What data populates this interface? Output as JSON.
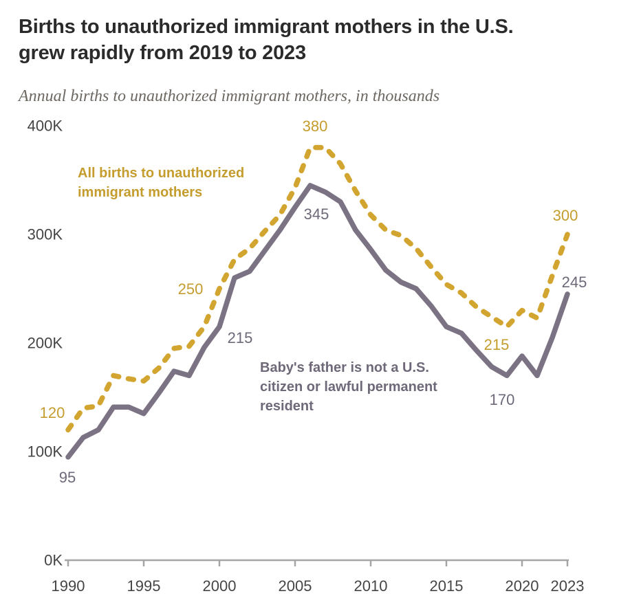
{
  "colors": {
    "gold_line": "#d1a52f",
    "gold_text": "#c49d2e",
    "gray_line": "#7b7383",
    "gray_text": "#6e6878",
    "axis_line": "#a6a6a6",
    "tick_text": "#454547",
    "title_text": "#2b2b2b",
    "subtitle_text": "#6d6862"
  },
  "chart_data": {
    "type": "line",
    "title": "Births to unauthorized immigrant mothers in the U.S.\ngrew rapidly from 2019 to 2023",
    "subtitle": "Annual births to unauthorized immigrant mothers, in thousands",
    "unit": "thousands of births",
    "grid": false,
    "legend_position": "direct-labels-on-chart",
    "xlim": [
      1990,
      2023
    ],
    "ylim": [
      0,
      400
    ],
    "x": [
      1990,
      1991,
      1992,
      1993,
      1994,
      1995,
      1996,
      1997,
      1998,
      1999,
      2000,
      2001,
      2002,
      2003,
      2004,
      2005,
      2006,
      2007,
      2008,
      2009,
      2010,
      2011,
      2012,
      2013,
      2014,
      2015,
      2016,
      2017,
      2018,
      2019,
      2020,
      2021,
      2022,
      2023
    ],
    "series": [
      {
        "id": "father",
        "name": "Baby's father is not a U.S. citizen or lawful permanent resident",
        "label": "Baby's father is not a U.S.\ncitizen or lawful permanent\nresident",
        "style": "solid",
        "color_key": "gray_line",
        "values": [
          95,
          113,
          120,
          141,
          141,
          135,
          154,
          174,
          170,
          196,
          215,
          260,
          266,
          285,
          304,
          325,
          345,
          339,
          330,
          304,
          286,
          267,
          256,
          250,
          234,
          215,
          209,
          193,
          178,
          170,
          188,
          170,
          205,
          245
        ]
      },
      {
        "id": "all",
        "name": "All births to unauthorized immigrant mothers",
        "label": "All births to unauthorized\nimmigrant mothers",
        "style": "dashed",
        "color_key": "gold_line",
        "values": [
          120,
          140,
          142,
          170,
          167,
          165,
          177,
          195,
          197,
          215,
          250,
          277,
          287,
          303,
          318,
          343,
          380,
          380,
          365,
          340,
          318,
          304,
          299,
          287,
          270,
          254,
          246,
          233,
          224,
          215,
          230,
          223,
          262,
          300
        ]
      }
    ],
    "y_ticks": [
      {
        "value": 400,
        "label": "400K"
      },
      {
        "value": 300,
        "label": "300K"
      },
      {
        "value": 200,
        "label": "200K"
      },
      {
        "value": 100,
        "label": "100K"
      },
      {
        "value": 0,
        "label": "0K"
      }
    ],
    "x_ticks": [
      {
        "value": 1990,
        "label": "1990"
      },
      {
        "value": 1995,
        "label": "1995"
      },
      {
        "value": 2000,
        "label": "2000"
      },
      {
        "value": 2005,
        "label": "2005"
      },
      {
        "value": 2010,
        "label": "2010"
      },
      {
        "value": 2015,
        "label": "2015"
      },
      {
        "value": 2020,
        "label": "2020"
      },
      {
        "value": 2023,
        "label": "2023"
      }
    ],
    "callouts": {
      "all_1990": "120",
      "all_2000": "250",
      "all_peak": "380",
      "all_2019": "215",
      "all_2023": "300",
      "father_1990": "95",
      "father_2000": "215",
      "father_peak": "345",
      "father_2019": "170",
      "father_2023": "245"
    }
  }
}
